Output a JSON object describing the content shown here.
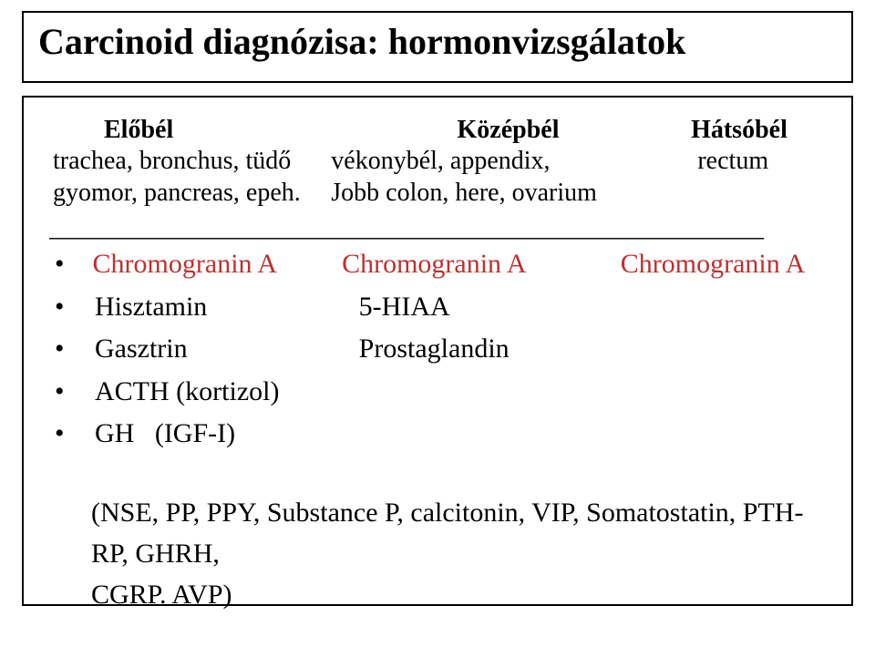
{
  "title": "Carcinoid diagnózisa: hormonvizsgálatok",
  "header": {
    "col1": "Előbél",
    "col2": "Középbél",
    "col3": "Hátsóbél"
  },
  "subheader": {
    "col1_line1": "trachea, bronchus, tüdő",
    "col1_line2": "gyomor, pancreas, epeh.",
    "col2_line1": "vékonybél, appendix,",
    "col2_line2": "Jobb colon, here, ovarium",
    "col3_line1": "rectum"
  },
  "divider": "________________________________________________________",
  "markers": {
    "row1": {
      "c1": "Chromogranin A",
      "c2": "Chromogranin A",
      "c3": "Chromogranin A"
    },
    "row2": {
      "c1": "Hisztamin",
      "c2": "5-HIAA"
    },
    "row3": {
      "c1": "Gasztrin",
      "c2": "Prostaglandin"
    },
    "row4": {
      "c1": "ACTH (kortizol)"
    },
    "row5": {
      "c1": "GH   (IGF-I)"
    }
  },
  "footer_line1": "(NSE, PP, PPY, Substance P, calcitonin, VIP, Somatostatin, PTH-RP, GHRH,",
  "footer_line2": "CGRP. AVP)",
  "colors": {
    "text": "#000000",
    "highlight": "#bf3030",
    "background": "#ffffff",
    "border": "#000000"
  }
}
